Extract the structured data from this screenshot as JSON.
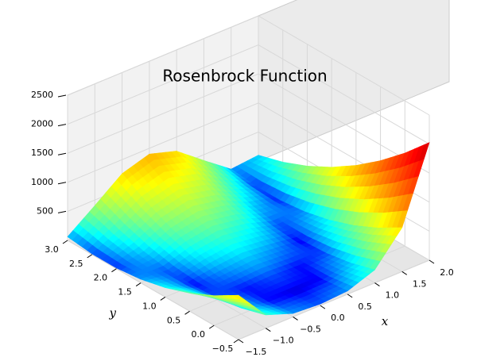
{
  "chart_data": {
    "type": "surface",
    "title": "Rosenbrock Function",
    "xlabel": "x",
    "ylabel": "y",
    "colormap": "jet",
    "grid": true,
    "x": [
      -1.5,
      -1,
      -0.5,
      0,
      0.5,
      1,
      1.5,
      2
    ],
    "y": [
      -0.5,
      0,
      0.5,
      1,
      1.5,
      2,
      2.5,
      3
    ],
    "z": [
      [
        762.5,
        229,
        58.5,
        26,
        56.5,
        225,
        756.5,
        2026
      ],
      [
        512.5,
        104,
        8.5,
        1,
        6.5,
        100,
        506.5,
        1601
      ],
      [
        312.5,
        29,
        8.5,
        26,
        6.5,
        25,
        306.5,
        1226
      ],
      [
        162.5,
        4,
        58.5,
        101,
        56.5,
        0,
        156.5,
        901
      ],
      [
        62.5,
        29,
        158.5,
        226,
        156.5,
        25,
        56.5,
        626
      ],
      [
        12.5,
        104,
        308.5,
        401,
        306.5,
        100,
        6.5,
        401
      ],
      [
        12.5,
        229,
        508.5,
        626,
        506.5,
        225,
        6.5,
        226
      ],
      [
        62.5,
        404,
        758.5,
        901,
        756.5,
        400,
        56.5,
        101
      ]
    ],
    "xlim": [
      -1.5,
      2
    ],
    "ylim": [
      -0.5,
      3
    ],
    "zlim": [
      0,
      2500
    ],
    "xticks": [
      {
        "value": -1.5,
        "label": "−1.5"
      },
      {
        "value": -1,
        "label": "−1.0"
      },
      {
        "value": -0.5,
        "label": "−0.5"
      },
      {
        "value": 0,
        "label": "0.0"
      },
      0.5,
      {
        "value": 1,
        "label": "1.0"
      },
      1.5,
      {
        "value": 2,
        "label": "2.0"
      }
    ],
    "yticks": [
      {
        "value": -0.5,
        "label": "−0.5"
      },
      {
        "value": 0,
        "label": "0.0"
      },
      0.5,
      {
        "value": 1,
        "label": "1.0"
      },
      1.5,
      {
        "value": 2,
        "label": "2.0"
      },
      2.5,
      {
        "value": 3,
        "label": "3.0"
      }
    ],
    "zticks": [
      500,
      1000,
      1500,
      2000,
      2500
    ]
  }
}
